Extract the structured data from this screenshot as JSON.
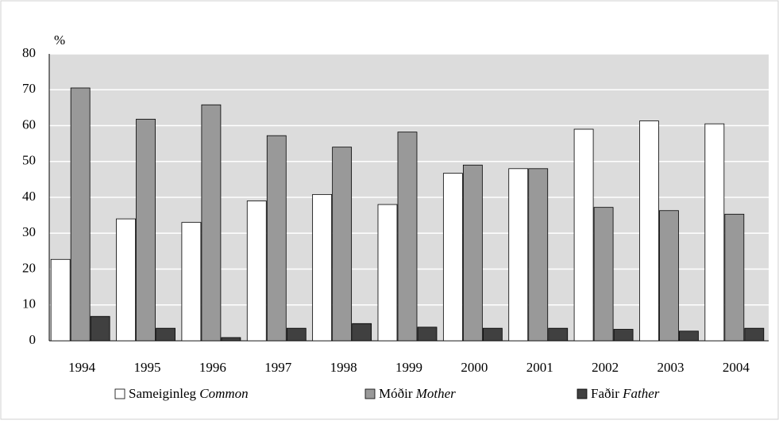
{
  "chart_data": {
    "type": "bar",
    "y_label": "%",
    "categories": [
      "1994",
      "1995",
      "1996",
      "1997",
      "1998",
      "1999",
      "2000",
      "2001",
      "2002",
      "2003",
      "2004"
    ],
    "series": [
      {
        "name": "Sameiginleg Common",
        "color": "#ffffff",
        "values": [
          22.7,
          34,
          33,
          39,
          40.8,
          38,
          46.7,
          48,
          59,
          61.3,
          60.5
        ]
      },
      {
        "name": "Móðir Mother",
        "color": "#999999",
        "values": [
          70.5,
          61.8,
          65.8,
          57.2,
          54,
          58.2,
          49,
          48,
          37.2,
          36.3,
          35.3
        ]
      },
      {
        "name": "Faðir Father",
        "color": "#404040",
        "values": [
          6.8,
          3.5,
          0.9,
          3.5,
          4.8,
          3.8,
          3.5,
          3.5,
          3.2,
          2.7,
          3.5
        ]
      }
    ],
    "ylim": [
      0,
      80
    ],
    "yticks": [
      0,
      10,
      20,
      30,
      40,
      50,
      60,
      70,
      80
    ],
    "grid": true,
    "legend": "bottom"
  }
}
